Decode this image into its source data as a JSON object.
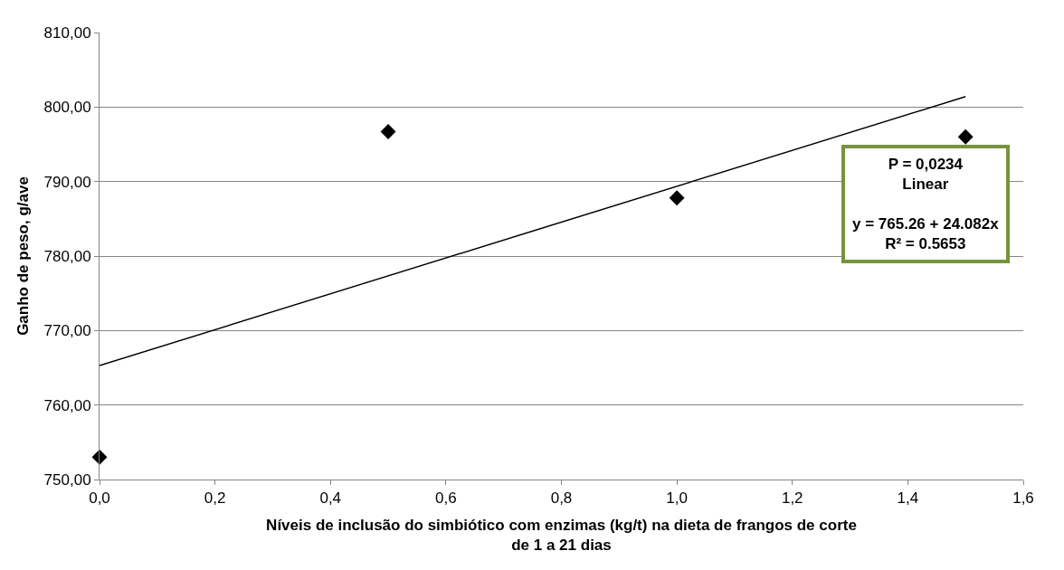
{
  "chart_data": {
    "type": "scatter",
    "xlabel": "Níveis de inclusão do simbiótico com enzimas (kg/t) na dieta de frangos de corte\nde 1 a 21 dias",
    "ylabel": "Ganho de peso, g/ave",
    "x": [
      0,
      0.5,
      1.0,
      1.5
    ],
    "series": [
      {
        "color": "#000000",
        "marker": "diamond",
        "values": [
          753.0,
          796.7,
          787.8,
          796.0
        ]
      },
      {
        "type": "line",
        "color": "#000000",
        "marker": "none",
        "x": [
          0,
          1.5
        ],
        "values": [
          765.3,
          801.4
        ]
      }
    ],
    "xlim": [
      0,
      1.6
    ],
    "xticks": [
      {
        "value": 0,
        "label": "0,0"
      },
      {
        "value": 0.2,
        "label": "0,2"
      },
      {
        "value": 0.4,
        "label": "0,4"
      },
      {
        "value": 0.6,
        "label": "0,6"
      },
      {
        "value": 0.8,
        "label": "0,8"
      },
      {
        "value": 1.0,
        "label": "1,0"
      },
      {
        "value": 1.2,
        "label": "1,2"
      },
      {
        "value": 1.4,
        "label": "1,4"
      },
      {
        "value": 1.6,
        "label": "1,6"
      }
    ],
    "ylim": [
      750,
      810
    ],
    "yticks": [
      {
        "value": 750,
        "label": "750,00"
      },
      {
        "value": 760,
        "label": "760,00"
      },
      {
        "value": 770,
        "label": "770,00"
      },
      {
        "value": 780,
        "label": "780,00"
      },
      {
        "value": 790,
        "label": "790,00"
      },
      {
        "value": 800,
        "label": "800,00"
      },
      {
        "value": 810,
        "label": "810,00"
      }
    ],
    "grid": "y",
    "annotations": [
      "P = 0,0234\nLinear\n\ny = 765.26 + 24.082x\nR² = 0.5653"
    ]
  }
}
